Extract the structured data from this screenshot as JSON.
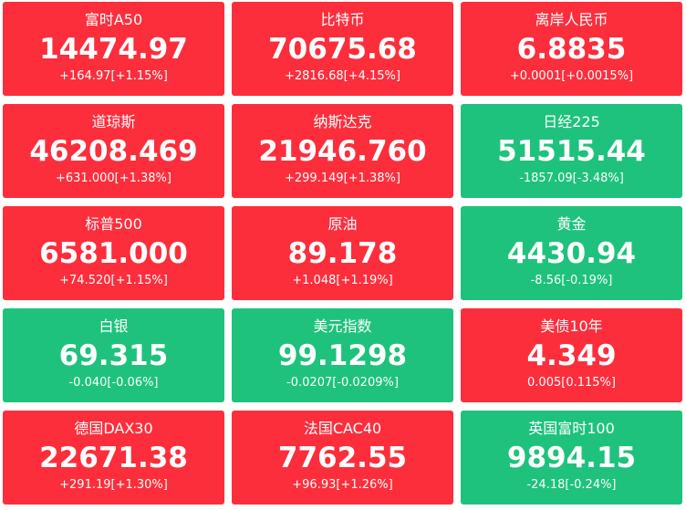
{
  "colors": {
    "up": "#fc2e3c",
    "down": "#1ec27c",
    "text": "#ffffff"
  },
  "tiles": [
    {
      "name": "富时A50",
      "price": "14474.97",
      "change": "+164.97[+1.15%]",
      "direction": "up"
    },
    {
      "name": "比特币",
      "price": "70675.68",
      "change": "+2816.68[+4.15%]",
      "direction": "up"
    },
    {
      "name": "离岸人民币",
      "price": "6.8835",
      "change": "+0.0001[+0.0015%]",
      "direction": "up"
    },
    {
      "name": "道琼斯",
      "price": "46208.469",
      "change": "+631.000[+1.38%]",
      "direction": "up"
    },
    {
      "name": "纳斯达克",
      "price": "21946.760",
      "change": "+299.149[+1.38%]",
      "direction": "up"
    },
    {
      "name": "日经225",
      "price": "51515.44",
      "change": "-1857.09[-3.48%]",
      "direction": "down"
    },
    {
      "name": "标普500",
      "price": "6581.000",
      "change": "+74.520[+1.15%]",
      "direction": "up"
    },
    {
      "name": "原油",
      "price": "89.178",
      "change": "+1.048[+1.19%]",
      "direction": "up"
    },
    {
      "name": "黄金",
      "price": "4430.94",
      "change": "-8.56[-0.19%]",
      "direction": "down"
    },
    {
      "name": "白银",
      "price": "69.315",
      "change": "-0.040[-0.06%]",
      "direction": "down"
    },
    {
      "name": "美元指数",
      "price": "99.1298",
      "change": "-0.0207[-0.0209%]",
      "direction": "down"
    },
    {
      "name": "美债10年",
      "price": "4.349",
      "change": "0.005[0.115%]",
      "direction": "up"
    },
    {
      "name": "德国DAX30",
      "price": "22671.38",
      "change": "+291.19[+1.30%]",
      "direction": "up"
    },
    {
      "name": "法国CAC40",
      "price": "7762.55",
      "change": "+96.93[+1.26%]",
      "direction": "up"
    },
    {
      "name": "英国富时100",
      "price": "9894.15",
      "change": "-24.18[-0.24%]",
      "direction": "down"
    }
  ]
}
